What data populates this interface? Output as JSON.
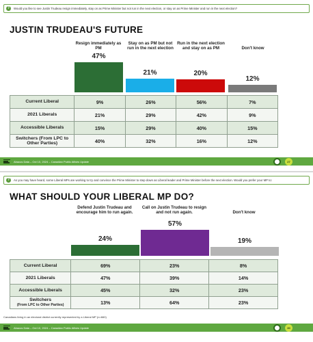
{
  "slide1": {
    "question": "Would you like to see Justin Trudeau resign immediately, stay on as Prime Minister but not run in the next election, or stay on as Prime Minister and run in the next election?",
    "title": "JUSTIN TRUDEAU'S FUTURE",
    "footer": "Abacus Data – Oct 10, 2024 – Canadian Public Affairs Update",
    "page": "27"
  },
  "slide2": {
    "question": "As you may have heard, some Liberal MPs are working to try and convince the Prime Minister to step down as Liberal leader and Prime Minister before the next election. Would you prefer your MP to:",
    "title": "WHAT SHOULD YOUR LIBERAL MP DO?",
    "note": "Canadians living in an electoral district currently represented by a Liberal MP (n=660)",
    "footer": "Abacus Data – Oct 10, 2024 – Canadian Public Affairs Update",
    "page": "30"
  },
  "colors": {
    "dark_green": "#2c6e35",
    "sky_blue": "#1aaee8",
    "red": "#cc0a0a",
    "gray": "#7a7a7a",
    "purple": "#6f2a92",
    "light_gray": "#b5b5b5",
    "footer_green": "#5fa840"
  },
  "chart_data": [
    {
      "type": "bar",
      "title": "JUSTIN TRUDEAU'S FUTURE",
      "categories": [
        "Resign immediately as PM",
        "Stay on as PM but not run in the next election",
        "Run in the next election and stay on as PM",
        "Don't know"
      ],
      "values": [
        47,
        21,
        20,
        12
      ],
      "labels": [
        "47%",
        "21%",
        "20%",
        "12%"
      ],
      "ylim": [
        0,
        47
      ],
      "table": {
        "rows": [
          {
            "label": "Current Liberal",
            "values": [
              "9%",
              "26%",
              "56%",
              "7%"
            ]
          },
          {
            "label": "2021 Liberals",
            "values": [
              "21%",
              "29%",
              "42%",
              "9%"
            ]
          },
          {
            "label": "Accessible Liberals",
            "values": [
              "15%",
              "29%",
              "40%",
              "15%"
            ]
          },
          {
            "label": "Switchers (From LPC to Other Parties)",
            "values": [
              "40%",
              "32%",
              "16%",
              "12%"
            ]
          }
        ]
      }
    },
    {
      "type": "bar",
      "title": "WHAT SHOULD YOUR LIBERAL MP DO?",
      "categories": [
        "Defend Justin Trudeau and encourage him to run again.",
        "Call on Justin Trudeau to resign and not run again.",
        "Don't know"
      ],
      "values": [
        24,
        57,
        19
      ],
      "labels": [
        "24%",
        "57%",
        "19%"
      ],
      "ylim": [
        0,
        57
      ],
      "table": {
        "rows": [
          {
            "label": "Current Liberal",
            "label_small": "",
            "values": [
              "69%",
              "23%",
              "8%"
            ]
          },
          {
            "label": "2021 Liberals",
            "label_small": "",
            "values": [
              "47%",
              "39%",
              "14%"
            ]
          },
          {
            "label": "Accessible Liberals",
            "label_small": "",
            "values": [
              "45%",
              "32%",
              "23%"
            ]
          },
          {
            "label": "Switchers",
            "label_small": "(From LPC to Other Parties)",
            "values": [
              "13%",
              "64%",
              "23%"
            ]
          }
        ]
      }
    }
  ]
}
